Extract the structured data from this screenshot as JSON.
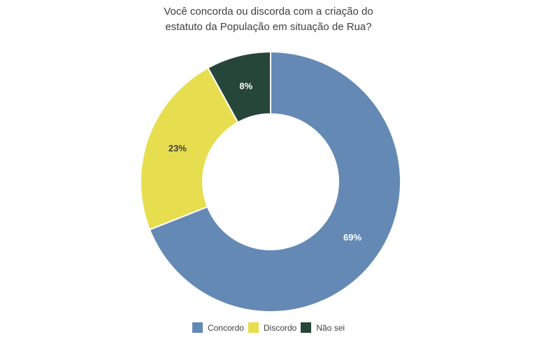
{
  "page": {
    "background": "#ffffff",
    "text_color": "#3f3f3f"
  },
  "title": {
    "lines": [
      "Você concorda ou discorda com a criação do",
      "estatuto da População em situação de Rua?"
    ]
  },
  "chart_data": {
    "type": "pie",
    "subtype": "donut",
    "title": "Você concorda ou discorda com a criação do estatuto da População em situação de Rua?",
    "slices": [
      {
        "key": "concordo",
        "label": "Concordo",
        "value": 69,
        "display": "69%",
        "color": "#6489b4",
        "label_color": "#ffffff"
      },
      {
        "key": "discordo",
        "label": "Discordo",
        "value": 23,
        "display": "23%",
        "color": "#e7de4f",
        "label_color": "#3f3f3f"
      },
      {
        "key": "nao-sei",
        "label": "Não sei",
        "value": 8,
        "display": "8%",
        "color": "#27463a",
        "label_color": "#ffffff"
      }
    ],
    "start_angle_deg": 0,
    "direction": "clockwise",
    "inner_radius_ratio": 0.52,
    "separator_color": "#ffffff",
    "legend_position": "bottom"
  }
}
